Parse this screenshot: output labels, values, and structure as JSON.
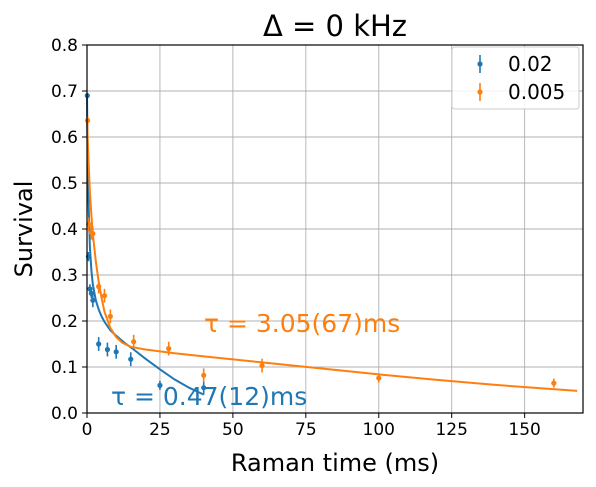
{
  "chart_data": {
    "type": "scatter",
    "title": "Δ = 0 kHz",
    "xlabel": "Raman time (ms)",
    "ylabel": "Survival",
    "xlim": [
      0,
      170
    ],
    "ylim": [
      0,
      0.8
    ],
    "xticks": [
      "0",
      "25",
      "50",
      "75",
      "100",
      "125",
      "150"
    ],
    "yticks": [
      "0.0",
      "0.1",
      "0.2",
      "0.3",
      "0.4",
      "0.5",
      "0.6",
      "0.7",
      "0.8"
    ],
    "grid": true,
    "legend_position": "top-right",
    "series": [
      {
        "name": "0.02",
        "color": "#1f77b4",
        "points": [
          {
            "x": 0.1,
            "y": 0.69,
            "err": 0.005
          },
          {
            "x": 0.5,
            "y": 0.34,
            "err": 0.01
          },
          {
            "x": 1,
            "y": 0.27,
            "err": 0.01
          },
          {
            "x": 1.5,
            "y": 0.26,
            "err": 0.01
          },
          {
            "x": 2,
            "y": 0.245,
            "err": 0.015
          },
          {
            "x": 4,
            "y": 0.15,
            "err": 0.015
          },
          {
            "x": 7,
            "y": 0.138,
            "err": 0.015
          },
          {
            "x": 10,
            "y": 0.133,
            "err": 0.015
          },
          {
            "x": 15,
            "y": 0.117,
            "err": 0.015
          },
          {
            "x": 25,
            "y": 0.06,
            "err": 0.01
          },
          {
            "x": 40,
            "y": 0.055,
            "err": 0.015
          }
        ],
        "fit": {
          "x": [
            0,
            0.25,
            0.5,
            1,
            1.5,
            2,
            3,
            4,
            5,
            6,
            8,
            10,
            13,
            16,
            20,
            25,
            30,
            35,
            40
          ],
          "y": [
            0.69,
            0.55,
            0.46,
            0.36,
            0.31,
            0.28,
            0.245,
            0.225,
            0.21,
            0.198,
            0.18,
            0.168,
            0.152,
            0.138,
            0.118,
            0.095,
            0.073,
            0.055,
            0.04
          ]
        },
        "annotation": "τ = 0.47(12)ms"
      },
      {
        "name": "0.005",
        "color": "#ff7f0e",
        "points": [
          {
            "x": 0.2,
            "y": 0.636,
            "err": 0.01
          },
          {
            "x": 0.6,
            "y": 0.41,
            "err": 0.015
          },
          {
            "x": 1.5,
            "y": 0.392,
            "err": 0.015
          },
          {
            "x": 2,
            "y": 0.39,
            "err": 0.015
          },
          {
            "x": 4,
            "y": 0.275,
            "err": 0.015
          },
          {
            "x": 6,
            "y": 0.255,
            "err": 0.015
          },
          {
            "x": 8,
            "y": 0.21,
            "err": 0.015
          },
          {
            "x": 16,
            "y": 0.155,
            "err": 0.015
          },
          {
            "x": 28,
            "y": 0.14,
            "err": 0.015
          },
          {
            "x": 40,
            "y": 0.082,
            "err": 0.015
          },
          {
            "x": 60,
            "y": 0.103,
            "err": 0.015
          },
          {
            "x": 100,
            "y": 0.076,
            "err": 0.01
          },
          {
            "x": 160,
            "y": 0.065,
            "err": 0.01
          }
        ],
        "fit": {
          "x": [
            0,
            0.5,
            1,
            1.5,
            2,
            3,
            4,
            5,
            6,
            8,
            10,
            12,
            15,
            20,
            30,
            40,
            60,
            80,
            100,
            120,
            140,
            168
          ],
          "y": [
            0.64,
            0.55,
            0.48,
            0.43,
            0.39,
            0.33,
            0.285,
            0.25,
            0.22,
            0.185,
            0.165,
            0.153,
            0.144,
            0.138,
            0.13,
            0.123,
            0.11,
            0.097,
            0.084,
            0.072,
            0.061,
            0.048
          ]
        },
        "annotation": "τ = 3.05(67)ms"
      }
    ]
  }
}
